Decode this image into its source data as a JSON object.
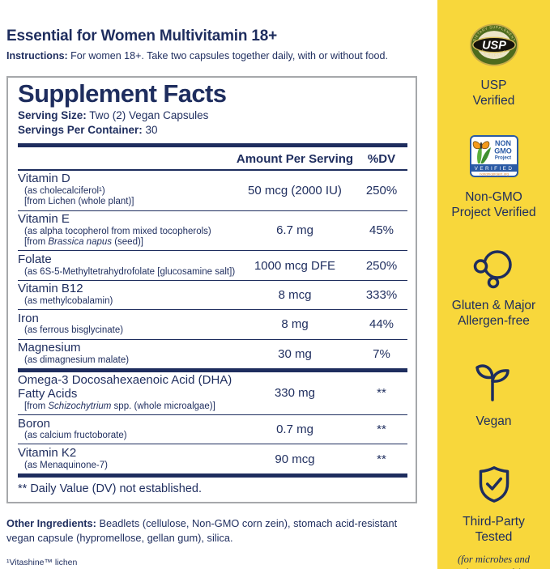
{
  "header": {
    "title": "Essential for Women Multivitamin 18+",
    "instructions_label": "Instructions:",
    "instructions_text": " For women 18+. Take two capsules together daily, with or without food."
  },
  "panel": {
    "title": "Supplement Facts",
    "serving_size_label": "Serving Size:",
    "serving_size_value": " Two (2) Vegan Capsules",
    "servings_label": "Servings Per Container:",
    "servings_value": " 30",
    "col_amount": "Amount Per Serving",
    "col_dv": "%DV",
    "rows": [
      {
        "name": "Vitamin D",
        "subs": [
          [
            {
              "t": "(as cholecalciferol¹)"
            }
          ],
          [
            {
              "t": "[from Lichen (whole plant)]"
            }
          ]
        ],
        "amount": "50 mcg (2000 IU)",
        "dv": "250%"
      },
      {
        "name": "Vitamin E",
        "subs": [
          [
            {
              "t": "(as alpha tocopherol from mixed tocopherols)"
            }
          ],
          [
            {
              "t": "[from "
            },
            {
              "t": "Brassica napus",
              "i": true
            },
            {
              "t": " (seed)]"
            }
          ]
        ],
        "amount": "6.7 mg",
        "dv": "45%"
      },
      {
        "name": "Folate",
        "subs": [
          [
            {
              "t": "(as 6S-5-Methyltetrahydrofolate [glucosamine salt])"
            }
          ]
        ],
        "amount": "1000 mcg DFE",
        "dv": "250%"
      },
      {
        "name": "Vitamin B12",
        "subs": [
          [
            {
              "t": "(as methylcobalamin)"
            }
          ]
        ],
        "amount": "8 mcg",
        "dv": "333%"
      },
      {
        "name": "Iron",
        "subs": [
          [
            {
              "t": "(as ferrous bisglycinate)"
            }
          ]
        ],
        "amount": "8 mg",
        "dv": "44%"
      },
      {
        "name": "Magnesium",
        "subs": [
          [
            {
              "t": "(as dimagnesium malate)"
            }
          ]
        ],
        "amount": "30 mg",
        "dv": "7%"
      },
      {
        "name": "Omega-3 Docosahexaenoic Acid (DHA) Fatty Acids",
        "thick_top": true,
        "subs": [
          [
            {
              "t": "[from "
            },
            {
              "t": "Schizochytrium",
              "i": true
            },
            {
              "t": " spp. (whole microalgae)]"
            }
          ]
        ],
        "amount": "330 mg",
        "dv": "**"
      },
      {
        "name": "Boron",
        "subs": [
          [
            {
              "t": "(as calcium fructoborate)"
            }
          ]
        ],
        "amount": "0.7 mg",
        "dv": "**"
      },
      {
        "name": "Vitamin K2",
        "subs": [
          [
            {
              "t": "(as Menaquinone-7)"
            }
          ]
        ],
        "amount": "90 mcg",
        "dv": "**"
      }
    ],
    "footnote": "** Daily Value (DV) not established."
  },
  "other_ingredients": {
    "label": "Other Ingredients:",
    "text": " Beadlets (cellulose, Non-GMO corn zein), stomach acid-resistant vegan capsule (hypromellose, gellan gum), silica."
  },
  "bottom_footnote": "¹Vitashine™ lichen",
  "sidebar": {
    "items": [
      {
        "icon": "usp-seal-icon",
        "label": "USP\nVerified"
      },
      {
        "icon": "non-gmo-seal-icon",
        "label": "Non-GMO\nProject Verified"
      },
      {
        "icon": "allergen-free-icon",
        "label": "Gluten & Major\nAllergen-free"
      },
      {
        "icon": "vegan-sprout-icon",
        "label": "Vegan"
      },
      {
        "icon": "shield-check-icon",
        "label": "Third-Party\nTested",
        "sublabel": "(for microbes and\nheavy metals)"
      }
    ],
    "usp_seal": {
      "arc_top": "DIETARY SUPPLEMENT",
      "center": "USP",
      "arc_bottom": "VERIFIED"
    },
    "non_gmo_seal": {
      "word1": "NON",
      "word2": "GMO",
      "word3": "Project",
      "verified": "VERIFIED",
      "url": "nongmoproject.org"
    }
  },
  "colors": {
    "navy": "#1E2D5E",
    "yellow": "#F8D73B",
    "box_border": "#A6A8AB",
    "usp_green": "#4E6B1D",
    "usp_gold": "#C9AD4A",
    "usp_cream": "#EDE5C8",
    "usp_black": "#16130C",
    "gmo_blue": "#2A5AA5",
    "gmo_orange_butterfly": "#F49A1C",
    "gmo_orange_url": "#E8882D",
    "gmo_green": "#5AAF3B"
  }
}
